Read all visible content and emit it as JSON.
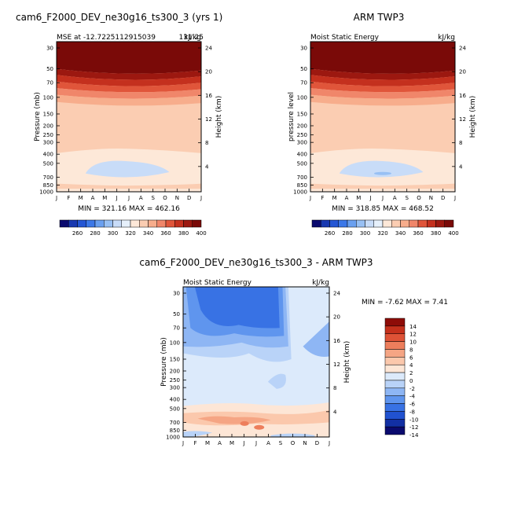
{
  "colors": {
    "levels_abs": [
      "#0a0a6e",
      "#1838b0",
      "#2456d4",
      "#3c78e8",
      "#6aa0f0",
      "#98c0f4",
      "#c8dcf8",
      "#e6f0fb",
      "#fde8d8",
      "#fbcdb2",
      "#f7ad8c",
      "#f0866a",
      "#e0553a",
      "#c4301e",
      "#9c1810",
      "#7a0a08"
    ],
    "levels_diff": [
      "#0a0a6e",
      "#1230a4",
      "#2152d0",
      "#3872e4",
      "#5f95ee",
      "#8eb6f4",
      "#b9d3f8",
      "#dceafb",
      "#fde6d6",
      "#fbc8ac",
      "#f5a584",
      "#ed7e5c",
      "#de5236",
      "#c5301c",
      "#8e0c08"
    ]
  },
  "chart_data": [
    {
      "type": "heatmap",
      "title": "cam6_F2000_DEV_ne30g16_ts300_3 (yrs 1)",
      "subtitle_left": "MSE at -12.7225112915039",
      "subtitle_right": "kJ/kg",
      "subtitle_overlap": "131.25",
      "xlabel": "",
      "ylabel": "Pressure (mb)",
      "ylabel_right": "Height (km)",
      "x_ticks": [
        "J",
        "F",
        "M",
        "A",
        "M",
        "J",
        "J",
        "A",
        "S",
        "O",
        "N",
        "D",
        "J"
      ],
      "y_ticks": [
        "30",
        "50",
        "70",
        "100",
        "150",
        "200",
        "250",
        "300",
        "400",
        "500",
        "700",
        "850",
        "1000"
      ],
      "y_ticks_right": [
        "24",
        "20",
        "16",
        "12",
        "8",
        "4"
      ],
      "stats": "MIN = 321.16  MAX = 462.16",
      "colorbar_labels": [
        "260",
        "280",
        "300",
        "320",
        "340",
        "360",
        "380",
        "400"
      ]
    },
    {
      "type": "heatmap",
      "title": "ARM TWP3",
      "subtitle_left": "Moist Static Energy",
      "subtitle_right": "kJ/kg",
      "xlabel": "",
      "ylabel": "pressure level",
      "ylabel_right": "Height (km)",
      "x_ticks": [
        "J",
        "F",
        "M",
        "A",
        "M",
        "J",
        "J",
        "A",
        "S",
        "O",
        "N",
        "D",
        "J"
      ],
      "y_ticks": [
        "30",
        "50",
        "70",
        "100",
        "150",
        "200",
        "250",
        "300",
        "400",
        "500",
        "700",
        "850",
        "1000"
      ],
      "y_ticks_right": [
        "24",
        "20",
        "16",
        "12",
        "8",
        "4"
      ],
      "stats": "MIN = 318.85  MAX = 468.52",
      "colorbar_labels": [
        "260",
        "280",
        "300",
        "320",
        "340",
        "360",
        "380",
        "400"
      ]
    },
    {
      "type": "heatmap",
      "title": "cam6_F2000_DEV_ne30g16_ts300_3 - ARM TWP3",
      "subtitle_left": "Moist Static Energy",
      "subtitle_right": "kJ/kg",
      "xlabel": "",
      "ylabel": "Pressure (mb)",
      "ylabel_right": "Height (km)",
      "x_ticks": [
        "J",
        "F",
        "M",
        "A",
        "M",
        "J",
        "J",
        "A",
        "S",
        "O",
        "N",
        "D",
        "J"
      ],
      "y_ticks": [
        "30",
        "50",
        "70",
        "100",
        "150",
        "200",
        "250",
        "300",
        "400",
        "500",
        "700",
        "850",
        "1000"
      ],
      "y_ticks_right": [
        "24",
        "20",
        "16",
        "12",
        "8",
        "4"
      ],
      "stats": "MIN = -7.62 MAX =   7.41",
      "colorbar_labels": [
        "14",
        "12",
        "10",
        "8",
        "6",
        "4",
        "2",
        "0",
        "-2",
        "-4",
        "-6",
        "-8",
        "-10",
        "-12",
        "-14"
      ]
    }
  ]
}
